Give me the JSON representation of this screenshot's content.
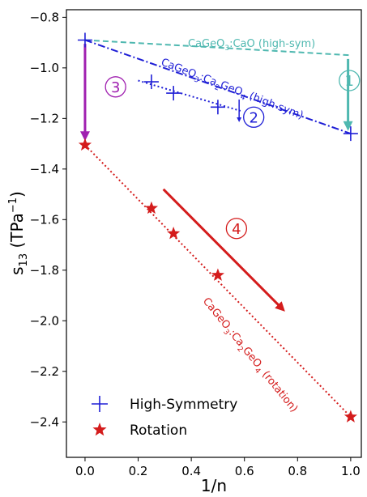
{
  "chart_data": {
    "type": "scatter",
    "xlabel": "1/n",
    "ylabel": "s",
    "ylabel_sub": "13",
    "ylabel_unit_prefix": " (TPa",
    "ylabel_unit_sup": "−1",
    "ylabel_unit_suffix": ")",
    "xlim": [
      -0.07,
      1.04
    ],
    "ylim": [
      -2.54,
      -0.77
    ],
    "x_ticks": [
      0.0,
      0.2,
      0.4,
      0.6,
      0.8,
      1.0
    ],
    "x_tick_labels": [
      "0.0",
      "0.2",
      "0.4",
      "0.6",
      "0.8",
      "1.0"
    ],
    "y_ticks": [
      -0.8,
      -1.0,
      -1.2,
      -1.4,
      -1.6,
      -1.8,
      -2.0,
      -2.2,
      -2.4
    ],
    "y_tick_labels": [
      "−0.8",
      "−1.0",
      "−1.2",
      "−1.4",
      "−1.6",
      "−1.8",
      "−2.0",
      "−2.2",
      "−2.4"
    ],
    "grid": false,
    "legend_position": "bottom-left",
    "series": [
      {
        "name": "High-Symmetry",
        "marker": "plus",
        "color": "#1f1fd6",
        "points": [
          {
            "x": 0.0,
            "y": -0.89
          },
          {
            "x": 0.25,
            "y": -1.055
          },
          {
            "x": 0.333,
            "y": -1.1
          },
          {
            "x": 0.5,
            "y": -1.155
          },
          {
            "x": 1.0,
            "y": -1.26
          }
        ]
      },
      {
        "name": "Rotation",
        "marker": "star",
        "color": "#d41c1c",
        "points": [
          {
            "x": 0.0,
            "y": -1.305
          },
          {
            "x": 0.25,
            "y": -1.555
          },
          {
            "x": 0.333,
            "y": -1.655
          },
          {
            "x": 0.5,
            "y": -1.82
          },
          {
            "x": 1.0,
            "y": -2.38
          }
        ]
      }
    ],
    "lines": [
      {
        "label_main": "CaGeO",
        "label_sub1": "3",
        "label_mid": ":CaO (high-sym)",
        "label_sub2": "",
        "label_end": "",
        "style": "dashed",
        "color": "#4fb8b0",
        "from": [
          0.0,
          -0.89
        ],
        "to": [
          1.0,
          -0.95
        ]
      },
      {
        "label_main": "CaGeO",
        "label_sub1": "3",
        "label_mid": ":Ca",
        "label_sub2": "2",
        "label_end": "GeO",
        "label_sub3": "4",
        "label_tail": " (high-sym)",
        "style": "dashdot",
        "color": "#1f1fd6",
        "from": [
          0.0,
          -0.89
        ],
        "to": [
          1.0,
          -1.26
        ]
      },
      {
        "style": "dotted",
        "color": "#1f1fd6",
        "from": [
          0.2,
          -1.05
        ],
        "to": [
          0.585,
          -1.17
        ]
      },
      {
        "label_main": "CaGeO",
        "label_sub1": "3",
        "label_mid": ":Ca",
        "label_sub2": "2",
        "label_end": "GeO",
        "label_sub3": "4",
        "label_tail": " (rotation)",
        "style": "dotted",
        "color": "#d41c1c",
        "from": [
          0.0,
          -1.305
        ],
        "to": [
          1.0,
          -2.38
        ]
      }
    ],
    "annotations": [
      {
        "number": "1",
        "color": "#4fb8b0",
        "x": 0.995,
        "y": -1.05
      },
      {
        "number": "2",
        "color": "#1f1fd6",
        "x": 0.635,
        "y": -1.195
      },
      {
        "number": "3",
        "color": "#a020b0",
        "x": 0.115,
        "y": -1.075
      },
      {
        "number": "4",
        "color": "#d41c1c",
        "x": 0.57,
        "y": -1.635
      }
    ],
    "arrows": [
      {
        "color": "#4fb8b0",
        "from": [
          0.99,
          -0.965
        ],
        "to": [
          0.99,
          -1.23
        ]
      },
      {
        "color": "#1f1fd6",
        "from": [
          0.58,
          -1.125
        ],
        "to": [
          0.58,
          -1.205
        ]
      },
      {
        "color": "#a020b0",
        "from": [
          0.0,
          -0.905
        ],
        "to": [
          0.0,
          -1.27
        ]
      },
      {
        "color": "#d41c1c",
        "from": [
          0.295,
          -1.48
        ],
        "to": [
          0.74,
          -1.95
        ]
      }
    ]
  }
}
